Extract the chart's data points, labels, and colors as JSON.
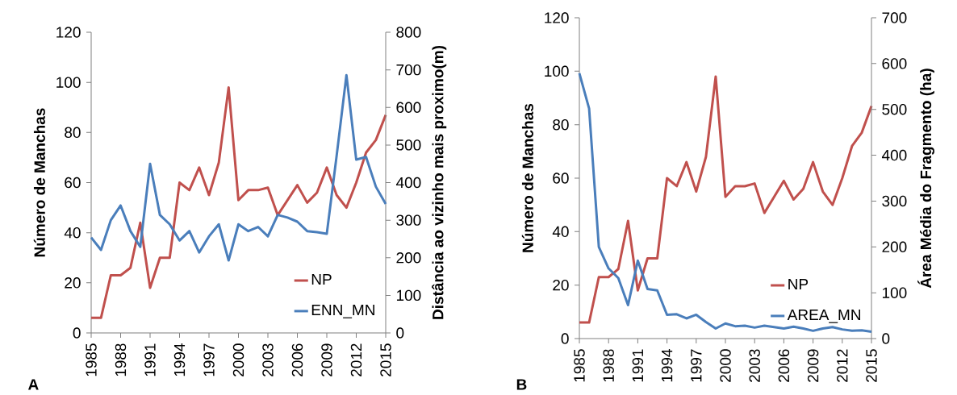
{
  "chart_data": [
    {
      "type": "line",
      "x": [
        1985,
        1986,
        1987,
        1988,
        1989,
        1990,
        1991,
        1992,
        1993,
        1994,
        1995,
        1996,
        1997,
        1998,
        1999,
        2000,
        2001,
        2002,
        2003,
        2004,
        2005,
        2006,
        2007,
        2008,
        2009,
        2010,
        2011,
        2012,
        2013,
        2014,
        2015
      ],
      "series": [
        {
          "name": "NP",
          "color": "#c0504d",
          "axis": "y",
          "values": [
            6,
            6,
            23,
            23,
            26,
            44,
            18,
            30,
            30,
            60,
            57,
            66,
            55,
            68,
            98,
            53,
            57,
            57,
            58,
            47,
            53,
            59,
            52,
            56,
            66,
            55,
            50,
            60,
            72,
            77,
            87
          ]
        },
        {
          "name": "ENN_MN",
          "color": "#4a7ebb",
          "axis": "y2",
          "values": [
            254,
            221,
            300,
            339,
            271,
            229,
            450,
            314,
            289,
            246,
            271,
            214,
            257,
            289,
            193,
            289,
            271,
            282,
            257,
            314,
            307,
            296,
            271,
            268,
            264,
            471,
            686,
            461,
            468,
            389,
            343
          ]
        }
      ],
      "xlim": [
        1985,
        2015
      ],
      "xticks": [
        1985,
        1988,
        1991,
        1994,
        1997,
        2000,
        2003,
        2006,
        2009,
        2012,
        2015
      ],
      "ylim": [
        0,
        120
      ],
      "yticks": [
        0,
        20,
        40,
        60,
        80,
        100,
        120
      ],
      "y2lim": [
        0,
        800
      ],
      "y2ticks": [
        0,
        100,
        200,
        300,
        400,
        500,
        600,
        700,
        800
      ],
      "ylabel": "Número de Manchas",
      "y2label": "Distância ao vizinho mais proximo(m)",
      "legend": "bottom right",
      "annotations": [
        "A"
      ]
    },
    {
      "type": "line",
      "x": [
        1985,
        1986,
        1987,
        1988,
        1989,
        1990,
        1991,
        1992,
        1993,
        1994,
        1995,
        1996,
        1997,
        1998,
        1999,
        2000,
        2001,
        2002,
        2003,
        2004,
        2005,
        2006,
        2007,
        2008,
        2009,
        2010,
        2011,
        2012,
        2013,
        2014,
        2015
      ],
      "series": [
        {
          "name": "NP",
          "color": "#c0504d",
          "axis": "y",
          "values": [
            6,
            6,
            23,
            23,
            26,
            44,
            18,
            30,
            30,
            60,
            57,
            66,
            55,
            68,
            98,
            53,
            57,
            57,
            58,
            47,
            53,
            59,
            52,
            56,
            66,
            55,
            50,
            60,
            72,
            77,
            87
          ]
        },
        {
          "name": "AREA_MN",
          "color": "#4a7ebb",
          "axis": "y2",
          "values": [
            579,
            502,
            200,
            153,
            132,
            73,
            170,
            108,
            105,
            52,
            53,
            44,
            52,
            36,
            22,
            33,
            27,
            28,
            24,
            28,
            25,
            22,
            26,
            22,
            17,
            22,
            25,
            20,
            17,
            18,
            15
          ]
        }
      ],
      "xlim": [
        1985,
        2015
      ],
      "xticks": [
        1985,
        1988,
        1991,
        1994,
        1997,
        2000,
        2003,
        2006,
        2009,
        2012,
        2015
      ],
      "ylim": [
        0,
        120
      ],
      "yticks": [
        0,
        20,
        40,
        60,
        80,
        100,
        120
      ],
      "y2lim": [
        0,
        700
      ],
      "y2ticks": [
        0,
        100,
        200,
        300,
        400,
        500,
        600,
        700
      ],
      "ylabel": "Número de Manchas",
      "y2label": "Área Média do Fragmento (ha)",
      "legend": "bottom right",
      "annotations": [
        "B"
      ]
    }
  ]
}
